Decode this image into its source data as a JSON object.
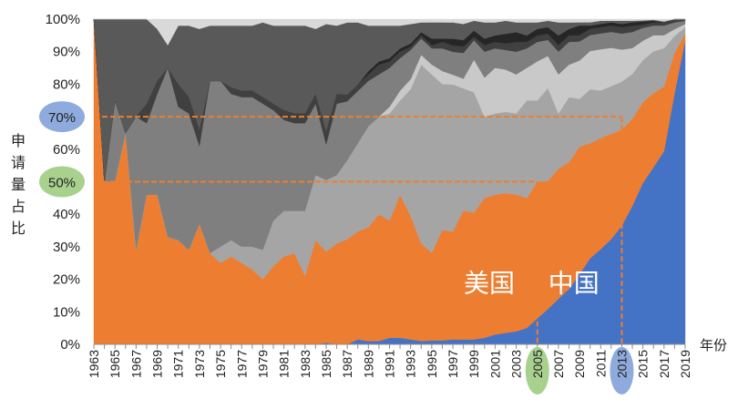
{
  "chart_data": {
    "type": "area",
    "stacked": true,
    "percent": true,
    "x": [
      1963,
      1964,
      1965,
      1966,
      1967,
      1968,
      1969,
      1970,
      1971,
      1972,
      1973,
      1974,
      1975,
      1976,
      1977,
      1978,
      1979,
      1980,
      1981,
      1982,
      1983,
      1984,
      1985,
      1986,
      1987,
      1988,
      1989,
      1990,
      1991,
      1992,
      1993,
      1994,
      1995,
      1996,
      1997,
      1998,
      1999,
      2000,
      2001,
      2002,
      2003,
      2004,
      2005,
      2006,
      2007,
      2008,
      2009,
      2010,
      2011,
      2012,
      2013,
      2014,
      2015,
      2016,
      2017,
      2018,
      2019
    ],
    "x_tick_labels": [
      "1963",
      "1965",
      "1967",
      "1969",
      "1971",
      "1973",
      "1975",
      "1977",
      "1979",
      "1981",
      "1983",
      "1985",
      "1987",
      "1989",
      "1991",
      "1993",
      "1995",
      "1997",
      "1999",
      "2001",
      "2003",
      "2005",
      "2007",
      "2009",
      "2011",
      "2013",
      "2015",
      "2017",
      "2019"
    ],
    "y_tick_labels": [
      "0%",
      "10%",
      "20%",
      "30%",
      "40%",
      "50%",
      "60%",
      "70%",
      "80%",
      "90%",
      "100%"
    ],
    "ylim": [
      0,
      100
    ],
    "xlabel": "年份",
    "ylabel": "申请量占比",
    "series": [
      {
        "name": "中国",
        "color": "#4472C4",
        "values": [
          0,
          0,
          0,
          0,
          0,
          0,
          0,
          0,
          0,
          0,
          0,
          0,
          0,
          0,
          0,
          0,
          0,
          0,
          0,
          0,
          0,
          0,
          0.5,
          0,
          0,
          1.5,
          1,
          1,
          2,
          2,
          1.5,
          1,
          1.2,
          1.2,
          1.5,
          1.5,
          1.5,
          2,
          3,
          3.5,
          4,
          5,
          8,
          11,
          14,
          17,
          22,
          27,
          30,
          33,
          37,
          43,
          50,
          55,
          60,
          75,
          92
        ]
      },
      {
        "name": "美国",
        "color": "#ED7D31",
        "values": [
          100,
          50,
          50,
          65,
          29,
          46,
          46,
          33,
          32,
          29,
          37,
          28,
          25,
          27,
          25,
          23,
          20,
          24,
          27,
          28,
          21,
          32,
          28,
          31,
          32,
          33,
          35,
          39,
          36,
          44,
          38,
          30,
          27,
          34,
          33,
          40,
          39,
          43,
          43,
          43,
          42,
          40,
          42,
          40,
          40,
          39,
          40,
          36,
          35,
          33,
          30,
          27,
          25,
          23,
          20,
          12,
          2
        ]
      },
      {
        "name": "",
        "color": "#A5A5A5",
        "values": [
          0,
          0,
          0,
          0,
          0,
          0,
          0,
          0,
          0,
          0,
          0,
          0,
          5,
          5,
          5,
          7,
          9,
          14,
          14,
          13,
          20,
          20,
          22,
          21,
          24,
          27,
          31,
          30,
          33,
          29,
          39,
          55,
          55,
          45,
          45,
          38,
          37,
          25,
          25,
          25,
          25,
          30,
          25,
          29,
          17,
          20,
          15,
          17,
          15,
          15,
          15,
          14,
          13,
          13,
          12,
          5,
          2
        ]
      },
      {
        "name": "",
        "color": "#C9C9C9",
        "values": [
          0,
          0,
          0,
          0,
          0,
          0,
          0,
          0,
          0,
          0,
          0,
          0,
          0,
          0,
          0,
          0,
          0,
          0,
          0,
          0,
          0,
          0,
          0,
          0,
          0,
          0,
          0,
          0,
          2,
          3,
          3,
          3,
          3,
          4,
          3,
          3,
          10,
          12,
          14,
          13,
          12,
          10,
          12,
          10,
          12,
          10,
          12,
          12,
          13,
          12,
          10,
          8,
          6,
          5,
          4,
          2,
          1
        ]
      },
      {
        "name": "",
        "color": "#7F7F7F",
        "values": [
          0,
          0,
          25,
          0,
          41,
          22,
          31,
          52,
          41,
          42,
          24,
          53,
          51,
          45,
          46,
          46,
          45,
          34,
          28,
          27,
          27,
          22,
          11,
          22,
          18,
          16,
          14,
          13,
          12,
          10,
          9,
          5,
          5,
          7,
          7,
          8,
          6,
          8,
          6,
          6,
          7,
          6,
          6,
          5,
          7,
          7,
          6,
          5,
          5,
          5,
          5,
          5,
          4,
          3,
          3,
          2,
          1
        ]
      },
      {
        "name": "",
        "color": "#404040",
        "values": [
          0,
          0,
          0,
          0,
          0,
          6,
          4,
          0,
          7,
          5,
          5,
          0,
          0,
          2,
          2,
          2,
          2,
          2,
          3,
          3,
          3,
          3,
          4,
          3,
          2,
          2,
          2,
          3,
          2,
          2,
          1,
          1,
          1,
          2,
          2,
          2,
          1,
          2,
          2,
          2,
          3,
          2,
          2,
          2,
          2,
          2,
          2,
          2,
          2,
          2,
          2,
          2,
          1,
          1,
          1,
          1,
          0.5
        ]
      },
      {
        "name": "",
        "color": "#262626",
        "values": [
          0,
          0,
          0,
          0,
          0,
          0,
          0,
          0,
          0,
          0,
          0,
          0,
          0,
          0,
          0,
          0,
          0,
          0,
          0,
          0,
          0,
          0,
          0,
          0,
          0,
          0,
          1,
          1,
          1,
          1,
          1,
          1,
          2,
          1,
          2,
          2,
          2,
          2,
          2,
          3,
          3,
          2,
          2,
          2,
          3,
          2,
          3,
          1,
          1,
          1,
          1,
          1,
          1,
          0.5,
          0,
          0,
          0
        ]
      },
      {
        "name": "",
        "color": "#595959",
        "values": [
          0,
          50,
          25,
          35,
          30,
          26,
          16,
          7,
          18,
          22,
          31,
          17,
          17,
          19,
          20,
          20,
          23,
          24,
          26,
          27,
          27,
          20,
          33,
          21,
          22,
          19,
          14,
          11,
          10,
          7,
          6,
          3,
          5,
          5,
          5,
          5,
          3,
          5,
          4,
          4,
          3,
          4,
          2,
          2,
          4,
          2,
          1,
          1,
          1,
          0.5,
          1,
          0.5,
          0.3,
          0.3,
          0.3,
          0,
          0
        ]
      },
      {
        "name": "",
        "color": "#D9D9D9",
        "values": [
          0,
          0,
          0,
          0,
          0,
          0,
          3,
          8,
          2,
          2,
          3,
          2,
          2,
          2,
          2,
          2,
          1,
          2,
          2,
          2,
          2,
          3,
          1.5,
          2,
          1,
          1,
          2,
          2,
          2,
          2,
          1.5,
          1,
          1,
          1,
          1,
          1.5,
          0.5,
          1,
          1,
          0.5,
          1,
          1,
          1,
          0.5,
          1,
          1,
          1,
          1,
          0.5,
          0.5,
          0.5,
          0.5,
          0.4,
          0.2,
          0.7,
          0,
          0
        ]
      }
    ],
    "reference_lines": [
      {
        "label": "70%",
        "y": 70,
        "x_end": 2013,
        "color": "#ED7D31",
        "marker_color": "#8FAADC"
      },
      {
        "label": "50%",
        "y": 50,
        "x_end": 2005,
        "color": "#ED7D31",
        "marker_color": "#A9D18E"
      }
    ],
    "x_highlights": [
      {
        "label": "2005",
        "x": 2005,
        "color": "#A9D18E"
      },
      {
        "label": "2013",
        "x": 2013,
        "color": "#8FAADC"
      }
    ],
    "annotations": [
      {
        "text": "美国",
        "x": 2002,
        "y": 10
      },
      {
        "text": "中国",
        "x": 2010,
        "y": 10
      }
    ]
  }
}
